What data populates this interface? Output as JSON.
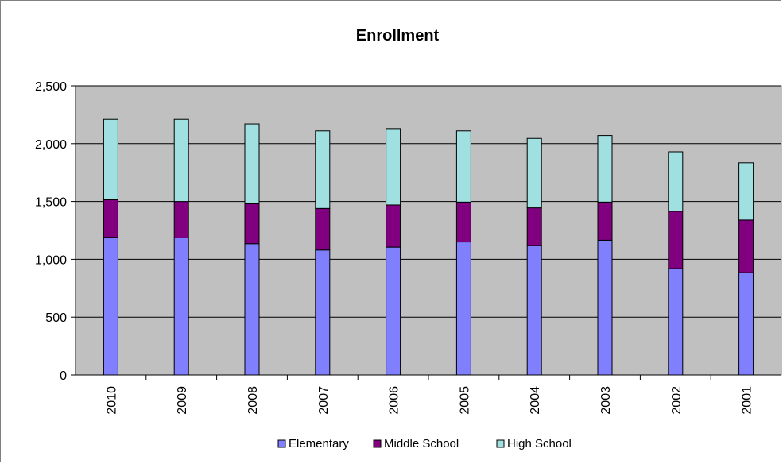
{
  "chart_data": {
    "type": "bar",
    "stacked": true,
    "title": "Enrollment",
    "xlabel": "",
    "ylabel": "",
    "ylim": [
      0,
      2500
    ],
    "yticks": [
      "0",
      "500",
      "1,000",
      "1,500",
      "2,000",
      "2,500"
    ],
    "ytick_values": [
      0,
      500,
      1000,
      1500,
      2000,
      2500
    ],
    "grid": true,
    "legend_position": "bottom",
    "categories": [
      "2010",
      "2009",
      "2008",
      "2007",
      "2006",
      "2005",
      "2004",
      "2003",
      "2002",
      "2001"
    ],
    "series": [
      {
        "name": "Elementary",
        "color": "#8080FF",
        "values": [
          1190,
          1185,
          1135,
          1080,
          1105,
          1150,
          1120,
          1165,
          920,
          885
        ]
      },
      {
        "name": "Middle School",
        "color": "#800080",
        "values": [
          325,
          315,
          345,
          360,
          365,
          345,
          325,
          330,
          495,
          455
        ]
      },
      {
        "name": "High School",
        "color": "#A0E0E0",
        "values": [
          695,
          710,
          690,
          670,
          660,
          615,
          600,
          575,
          515,
          495
        ]
      }
    ],
    "plot_background": "#C0C0C0"
  }
}
